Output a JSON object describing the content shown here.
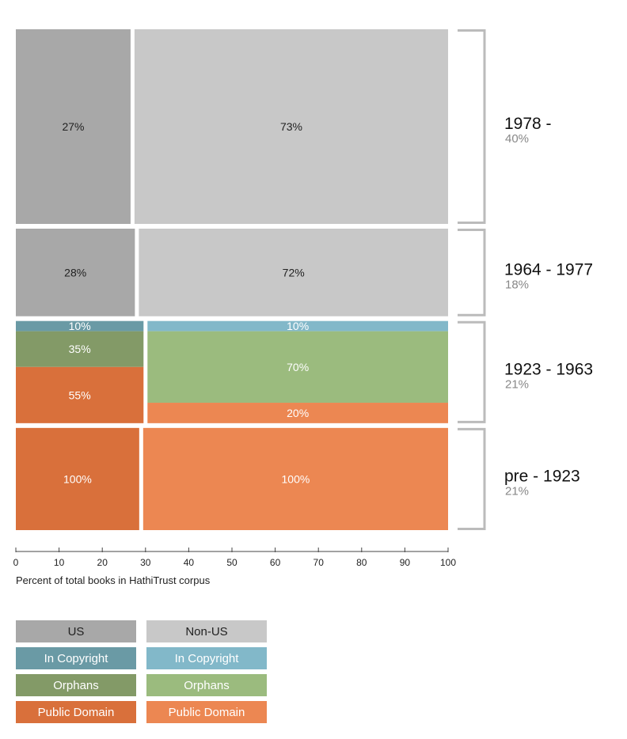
{
  "chart_data": {
    "type": "bar",
    "subtype": "marimekko",
    "xlabel": "Percent of total books in HathiTrust corpus",
    "xlim": [
      0,
      100
    ],
    "xticks": [
      0,
      10,
      20,
      30,
      40,
      50,
      60,
      70,
      80,
      90,
      100
    ],
    "groups": [
      {
        "label": "1978 -",
        "share": "40%",
        "share_value": 40,
        "columns": [
          {
            "origin": "US",
            "width": 27,
            "label": "27%",
            "segments": [
              {
                "category": "Unclassified",
                "value": 100,
                "label": ""
              }
            ]
          },
          {
            "origin": "Non-US",
            "width": 73,
            "label": "73%",
            "segments": [
              {
                "category": "Unclassified",
                "value": 100,
                "label": ""
              }
            ]
          }
        ]
      },
      {
        "label": "1964 - 1977",
        "share": "18%",
        "share_value": 18,
        "columns": [
          {
            "origin": "US",
            "width": 28,
            "label": "28%",
            "segments": [
              {
                "category": "Unclassified",
                "value": 100,
                "label": ""
              }
            ]
          },
          {
            "origin": "Non-US",
            "width": 72,
            "label": "72%",
            "segments": [
              {
                "category": "Unclassified",
                "value": 100,
                "label": ""
              }
            ]
          }
        ]
      },
      {
        "label": "1923 - 1963",
        "share": "21%",
        "share_value": 21,
        "columns": [
          {
            "origin": "US",
            "width": 30,
            "label": "",
            "segments": [
              {
                "category": "In Copyright",
                "value": 10,
                "label": "10%"
              },
              {
                "category": "Orphans",
                "value": 35,
                "label": "35%"
              },
              {
                "category": "Public Domain",
                "value": 55,
                "label": "55%"
              }
            ]
          },
          {
            "origin": "Non-US",
            "width": 70,
            "label": "",
            "segments": [
              {
                "category": "In Copyright",
                "value": 10,
                "label": "10%"
              },
              {
                "category": "Orphans",
                "value": 70,
                "label": "70%"
              },
              {
                "category": "Public Domain",
                "value": 20,
                "label": "20%"
              }
            ]
          }
        ]
      },
      {
        "label": "pre - 1923",
        "share": "21%",
        "share_value": 21,
        "columns": [
          {
            "origin": "US",
            "width": 29,
            "label": "",
            "segments": [
              {
                "category": "Public Domain",
                "value": 100,
                "label": "100%"
              }
            ]
          },
          {
            "origin": "Non-US",
            "width": 71,
            "label": "",
            "segments": [
              {
                "category": "Public Domain",
                "value": 100,
                "label": "100%"
              }
            ]
          }
        ]
      }
    ],
    "colors": {
      "US": {
        "Unclassified": "#a8a8a8",
        "In Copyright": "#6a9aa5",
        "Orphans": "#839a67",
        "Public Domain": "#d9703b"
      },
      "Non-US": {
        "Unclassified": "#c8c8c8",
        "In Copyright": "#82b8c9",
        "Orphans": "#9bbb7e",
        "Public Domain": "#ec8752"
      }
    },
    "legend": {
      "placement": "bottom-left",
      "items": [
        {
          "label": "US",
          "origin": "US",
          "category": "Unclassified",
          "text_color": "#222222"
        },
        {
          "label": "Non-US",
          "origin": "Non-US",
          "category": "Unclassified",
          "text_color": "#222222"
        },
        {
          "label": "In Copyright",
          "origin": "US",
          "category": "In Copyright",
          "text_color": "#ffffff"
        },
        {
          "label": "In Copyright",
          "origin": "Non-US",
          "category": "In Copyright",
          "text_color": "#ffffff"
        },
        {
          "label": "Orphans",
          "origin": "US",
          "category": "Orphans",
          "text_color": "#ffffff"
        },
        {
          "label": "Orphans",
          "origin": "Non-US",
          "category": "Orphans",
          "text_color": "#ffffff"
        },
        {
          "label": "Public Domain",
          "origin": "US",
          "category": "Public Domain",
          "text_color": "#ffffff"
        },
        {
          "label": "Public Domain",
          "origin": "Non-US",
          "category": "Public Domain",
          "text_color": "#ffffff"
        }
      ]
    },
    "bracket_color": "#bbbbbb",
    "share_color": "#888888"
  }
}
